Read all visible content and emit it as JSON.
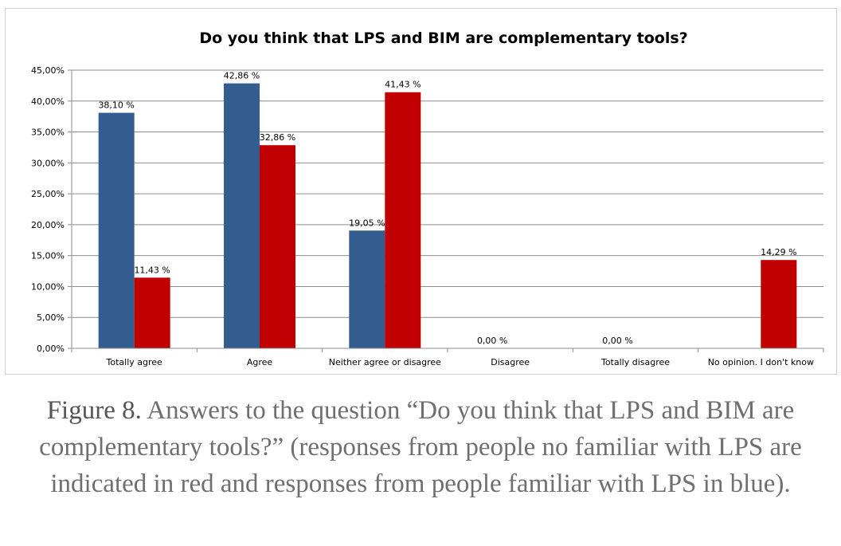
{
  "chart_data": {
    "type": "bar",
    "title": "Do you think that LPS and BIM are complementary tools?",
    "categories": [
      "Totally agree",
      "Agree",
      "Neither agree or disagree",
      "Disagree",
      "Totally disagree",
      "No opinion. I don't know"
    ],
    "series": [
      {
        "color": "#345d8f",
        "values": [
          38.1,
          42.86,
          19.05,
          0.0,
          0.0,
          0.0
        ],
        "labels": [
          "38,10 %",
          "42,86 %",
          "19,05 %",
          "0,00 %",
          "0,00 %",
          ""
        ]
      },
      {
        "color": "#c00000",
        "values": [
          11.43,
          32.86,
          41.43,
          0.0,
          0.0,
          14.29
        ],
        "labels": [
          "11,43 %",
          "32,86 %",
          "41,43 %",
          "",
          "",
          "14,29 %"
        ]
      }
    ],
    "ylim": [
      0,
      45
    ],
    "yticks": [
      "0,00%",
      "5,00%",
      "10,00%",
      "15,00%",
      "20,00%",
      "25,00%",
      "30,00%",
      "35,00%",
      "40,00%",
      "45,00%"
    ],
    "xlabel": "",
    "ylabel": "",
    "grid": true,
    "legend": false
  },
  "caption": {
    "lead": "Figure 8.",
    "text": " Answers to the question “Do you think that LPS and BIM are complementary tools?” (responses from people no familiar with LPS are indicated in red and  responses from people familiar with LPS  in blue)."
  }
}
